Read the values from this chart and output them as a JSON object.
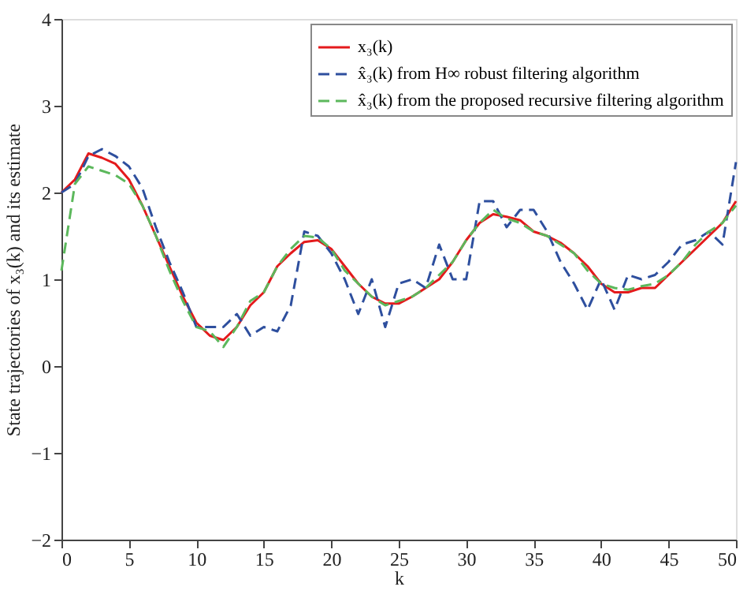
{
  "chart_data": {
    "type": "line",
    "xlabel": "k",
    "ylabel": "State trajectories of x₃(k) and its estimate",
    "x": [
      0,
      1,
      2,
      3,
      4,
      5,
      6,
      7,
      8,
      9,
      10,
      11,
      12,
      13,
      14,
      15,
      16,
      17,
      18,
      19,
      20,
      21,
      22,
      23,
      24,
      25,
      26,
      27,
      28,
      29,
      30,
      31,
      32,
      33,
      34,
      35,
      36,
      37,
      38,
      39,
      40,
      41,
      42,
      43,
      44,
      45,
      46,
      47,
      48,
      49,
      50
    ],
    "series": [
      {
        "name": "x₃(k)",
        "color": "#e41a1c",
        "line_style": "solid",
        "values": [
          2.0,
          2.15,
          2.45,
          2.4,
          2.33,
          2.15,
          1.85,
          1.5,
          1.15,
          0.8,
          0.5,
          0.35,
          0.3,
          0.45,
          0.7,
          0.85,
          1.15,
          1.3,
          1.43,
          1.45,
          1.35,
          1.15,
          0.95,
          0.8,
          0.72,
          0.72,
          0.8,
          0.9,
          1.0,
          1.2,
          1.45,
          1.65,
          1.75,
          1.72,
          1.68,
          1.55,
          1.5,
          1.42,
          1.3,
          1.15,
          0.95,
          0.85,
          0.85,
          0.9,
          0.9,
          1.05,
          1.2,
          1.35,
          1.5,
          1.65,
          1.9
        ]
      },
      {
        "name": "x̂₃(k) from H∞ robust filtering algorithm",
        "color": "#2e4f9e",
        "line_style": "dashed",
        "values": [
          2.0,
          2.1,
          2.42,
          2.5,
          2.42,
          2.3,
          2.05,
          1.6,
          1.2,
          0.85,
          0.45,
          0.45,
          0.45,
          0.6,
          0.35,
          0.45,
          0.4,
          0.7,
          1.55,
          1.5,
          1.3,
          1.0,
          0.6,
          1.0,
          0.45,
          0.95,
          1.0,
          0.9,
          1.4,
          1.0,
          1.0,
          1.9,
          1.9,
          1.6,
          1.8,
          1.8,
          1.55,
          1.2,
          0.95,
          0.65,
          1.0,
          0.65,
          1.05,
          1.0,
          1.05,
          1.2,
          1.4,
          1.45,
          1.55,
          1.4,
          2.35
        ]
      },
      {
        "name": "x̂₃(k) from the proposed recursive filtering algorithm",
        "color": "#5cb85c",
        "line_style": "dashed",
        "values": [
          1.1,
          2.1,
          2.3,
          2.25,
          2.2,
          2.1,
          1.85,
          1.5,
          1.1,
          0.75,
          0.45,
          0.4,
          0.22,
          0.45,
          0.75,
          0.85,
          1.15,
          1.35,
          1.5,
          1.48,
          1.35,
          1.1,
          0.95,
          0.8,
          0.7,
          0.75,
          0.8,
          0.9,
          1.05,
          1.2,
          1.45,
          1.65,
          1.8,
          1.7,
          1.65,
          1.55,
          1.5,
          1.4,
          1.3,
          1.1,
          0.95,
          0.9,
          0.88,
          0.92,
          0.95,
          1.05,
          1.2,
          1.4,
          1.55,
          1.65,
          1.85
        ]
      }
    ],
    "xlim": [
      0,
      50
    ],
    "xticks": [
      0,
      5,
      10,
      15,
      20,
      25,
      30,
      35,
      40,
      45,
      50
    ],
    "ylim": [
      -2,
      4
    ],
    "yticks": [
      -2,
      -1,
      0,
      1,
      2,
      3,
      4
    ],
    "grid": false,
    "legend": "top right",
    "marker": "none"
  }
}
